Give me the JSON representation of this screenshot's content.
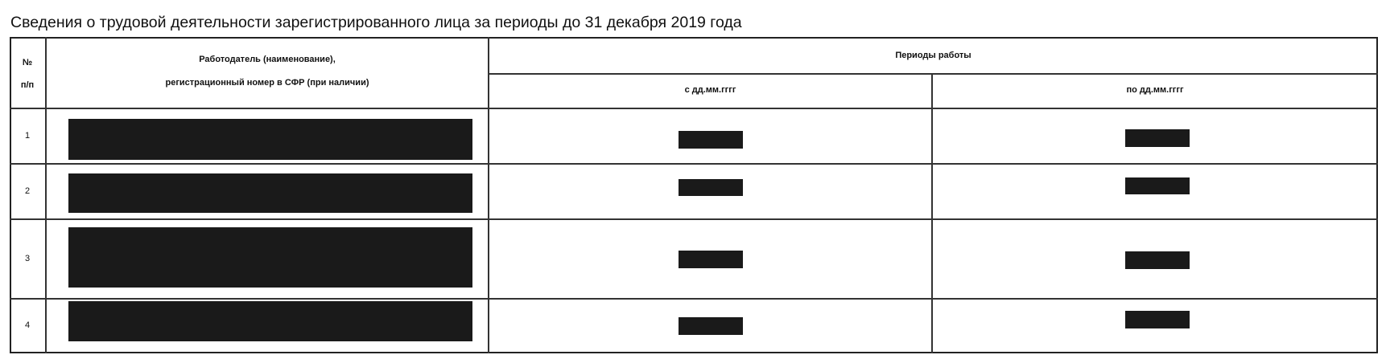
{
  "title": "Сведения о трудовой деятельности зарегистрированного лица за периоды до 31 декабря 2019 года",
  "table": {
    "headers": {
      "num_line1": "№",
      "num_line2": "п/п",
      "employer_line1": "Работодатель (наименование),",
      "employer_line2": "регистрационный номер в СФР (при наличии)",
      "periods": "Периоды работы",
      "from": "с дд.мм.гггг",
      "to": "по дд.мм.гггг"
    },
    "rows": [
      {
        "num": "1",
        "employer": "[redacted]",
        "from": "[redacted]",
        "to": "[redacted]"
      },
      {
        "num": "2",
        "employer": "[redacted]",
        "from": "[redacted]",
        "to": "[redacted]"
      },
      {
        "num": "3",
        "employer": "[redacted]",
        "from": "[redacted]",
        "to": "[redacted]"
      },
      {
        "num": "4",
        "employer": "[redacted]",
        "from": "[redacted]",
        "to": "[redacted]"
      }
    ]
  },
  "colors": {
    "redaction": "#1a1a1a",
    "border": "#222222"
  }
}
